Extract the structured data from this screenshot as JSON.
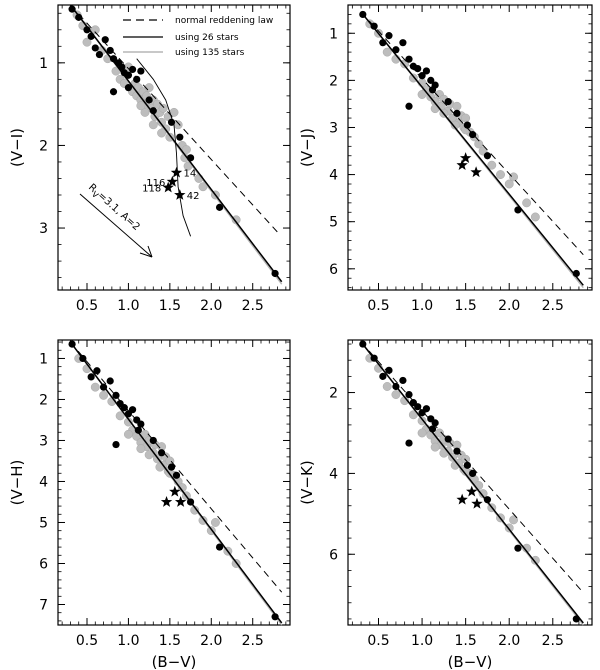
{
  "chart_data": [
    {
      "type": "scatter",
      "panel": "V-I",
      "xlabel": "",
      "ylabel": "(V−I)",
      "xlim": [
        0.15,
        2.95
      ],
      "ylim": [
        0.3,
        3.75
      ],
      "y_inverted": true,
      "x_ticks": [
        0.5,
        1.0,
        1.5,
        2.0,
        2.5
      ],
      "x_tick_labels": [
        "0.5",
        "1.0",
        "1.5",
        "2.0",
        "2.5"
      ],
      "y_ticks": [
        1,
        2,
        3
      ],
      "y_tick_labels": [
        "1",
        "2",
        "3"
      ],
      "legend": [
        {
          "label": "normal reddening law",
          "style": "dashed"
        },
        {
          "label": "using 26 stars",
          "style": "solid-black"
        },
        {
          "label": "using 135 stars",
          "style": "solid-gray"
        }
      ],
      "lines": {
        "normal_reddening": [
          [
            0.3,
            0.3
          ],
          [
            2.8,
            3.05
          ]
        ],
        "fit_26": [
          [
            0.3,
            0.3
          ],
          [
            2.85,
            3.65
          ]
        ],
        "fit_135": [
          [
            0.3,
            0.3
          ],
          [
            2.85,
            3.68
          ]
        ]
      },
      "isochrone": [
        [
          1.1,
          0.95
        ],
        [
          1.3,
          1.2
        ],
        [
          1.45,
          1.45
        ],
        [
          1.55,
          1.75
        ],
        [
          1.58,
          2.1
        ],
        [
          1.6,
          2.5
        ],
        [
          1.66,
          2.85
        ],
        [
          1.75,
          3.1
        ]
      ],
      "black_points": [
        [
          0.32,
          0.35
        ],
        [
          0.4,
          0.45
        ],
        [
          0.5,
          0.6
        ],
        [
          0.55,
          0.68
        ],
        [
          0.6,
          0.82
        ],
        [
          0.65,
          0.9
        ],
        [
          0.72,
          0.72
        ],
        [
          0.78,
          0.85
        ],
        [
          0.82,
          0.95
        ],
        [
          0.88,
          1.0
        ],
        [
          0.92,
          1.05
        ],
        [
          0.95,
          1.12
        ],
        [
          1.0,
          1.15
        ],
        [
          1.05,
          1.08
        ],
        [
          1.1,
          1.2
        ],
        [
          1.15,
          1.1
        ],
        [
          1.0,
          1.3
        ],
        [
          0.82,
          1.35
        ],
        [
          1.25,
          1.45
        ],
        [
          1.3,
          1.58
        ],
        [
          1.52,
          1.72
        ],
        [
          1.62,
          1.9
        ],
        [
          1.75,
          2.15
        ],
        [
          2.1,
          2.75
        ],
        [
          2.77,
          3.55
        ]
      ],
      "gray_points": [
        [
          0.38,
          0.42
        ],
        [
          0.45,
          0.55
        ],
        [
          0.5,
          0.75
        ],
        [
          0.6,
          0.6
        ],
        [
          0.68,
          0.85
        ],
        [
          0.75,
          0.95
        ],
        [
          0.85,
          1.1
        ],
        [
          0.9,
          1.2
        ],
        [
          0.95,
          1.25
        ],
        [
          1.0,
          1.05
        ],
        [
          1.05,
          1.35
        ],
        [
          1.08,
          1.25
        ],
        [
          1.1,
          1.4
        ],
        [
          1.12,
          1.3
        ],
        [
          1.15,
          1.45
        ],
        [
          1.18,
          1.35
        ],
        [
          1.2,
          1.5
        ],
        [
          1.22,
          1.4
        ],
        [
          1.25,
          1.3
        ],
        [
          1.28,
          1.55
        ],
        [
          1.3,
          1.45
        ],
        [
          1.32,
          1.65
        ],
        [
          1.35,
          1.5
        ],
        [
          1.38,
          1.6
        ],
        [
          1.4,
          1.72
        ],
        [
          1.42,
          1.55
        ],
        [
          1.45,
          1.8
        ],
        [
          1.48,
          1.65
        ],
        [
          1.5,
          1.9
        ],
        [
          1.55,
          1.6
        ],
        [
          1.6,
          1.75
        ],
        [
          1.65,
          2.0
        ],
        [
          1.68,
          2.15
        ],
        [
          1.72,
          2.25
        ],
        [
          1.85,
          2.4
        ],
        [
          1.9,
          2.5
        ],
        [
          2.05,
          2.6
        ],
        [
          2.3,
          2.9
        ],
        [
          1.2,
          1.6
        ],
        [
          1.15,
          1.52
        ],
        [
          1.3,
          1.75
        ],
        [
          1.4,
          1.85
        ],
        [
          1.7,
          2.05
        ]
      ],
      "stars": [
        [
          1.58,
          2.33
        ],
        [
          1.53,
          2.44
        ],
        [
          1.48,
          2.51
        ],
        [
          1.62,
          2.6
        ]
      ],
      "star_labels": [
        "14",
        "116",
        "118",
        "42"
      ],
      "annotation": {
        "text": "R_V=3.1, A=2",
        "rv_main": "R",
        "rv_sub": "V",
        "rv_rest": "=3.1, A=2"
      }
    },
    {
      "type": "scatter",
      "panel": "V-J",
      "xlabel": "",
      "ylabel": "(V−J)",
      "xlim": [
        0.15,
        2.95
      ],
      "ylim": [
        0.4,
        6.45
      ],
      "y_inverted": true,
      "x_ticks": [
        0.5,
        1.0,
        1.5,
        2.0,
        2.5
      ],
      "x_tick_labels": [
        "0.5",
        "1.0",
        "1.5",
        "2.0",
        "2.5"
      ],
      "y_ticks": [
        1,
        2,
        3,
        4,
        5,
        6
      ],
      "y_tick_labels": [
        "1",
        "2",
        "3",
        "4",
        "5",
        "6"
      ],
      "lines": {
        "normal_reddening": [
          [
            0.3,
            0.55
          ],
          [
            2.85,
            5.7
          ]
        ],
        "fit_26": [
          [
            0.3,
            0.55
          ],
          [
            2.85,
            6.35
          ]
        ],
        "fit_135": [
          [
            0.3,
            0.55
          ],
          [
            2.85,
            6.4
          ]
        ]
      },
      "black_points": [
        [
          0.32,
          0.6
        ],
        [
          0.45,
          0.85
        ],
        [
          0.55,
          1.2
        ],
        [
          0.62,
          1.05
        ],
        [
          0.7,
          1.35
        ],
        [
          0.78,
          1.2
        ],
        [
          0.85,
          1.55
        ],
        [
          0.9,
          1.7
        ],
        [
          0.95,
          1.75
        ],
        [
          1.0,
          1.9
        ],
        [
          1.05,
          1.8
        ],
        [
          1.1,
          2.0
        ],
        [
          1.12,
          2.2
        ],
        [
          1.15,
          2.1
        ],
        [
          0.85,
          2.55
        ],
        [
          1.3,
          2.45
        ],
        [
          1.4,
          2.7
        ],
        [
          1.52,
          2.95
        ],
        [
          1.58,
          3.15
        ],
        [
          1.75,
          3.6
        ],
        [
          2.1,
          4.75
        ],
        [
          2.77,
          6.1
        ]
      ],
      "gray_points": [
        [
          0.4,
          0.8
        ],
        [
          0.5,
          1.0
        ],
        [
          0.6,
          1.4
        ],
        [
          0.7,
          1.55
        ],
        [
          0.8,
          1.65
        ],
        [
          0.9,
          1.95
        ],
        [
          1.0,
          2.05
        ],
        [
          1.05,
          2.2
        ],
        [
          1.1,
          2.35
        ],
        [
          1.15,
          2.45
        ],
        [
          1.2,
          2.3
        ],
        [
          1.22,
          2.55
        ],
        [
          1.25,
          2.4
        ],
        [
          1.3,
          2.65
        ],
        [
          1.32,
          2.5
        ],
        [
          1.35,
          2.8
        ],
        [
          1.4,
          2.55
        ],
        [
          1.42,
          2.9
        ],
        [
          1.45,
          2.75
        ],
        [
          1.48,
          3.0
        ],
        [
          1.5,
          2.8
        ],
        [
          1.55,
          3.1
        ],
        [
          1.6,
          3.2
        ],
        [
          1.65,
          3.35
        ],
        [
          1.7,
          3.5
        ],
        [
          1.8,
          3.8
        ],
        [
          1.9,
          4.0
        ],
        [
          2.0,
          4.2
        ],
        [
          2.05,
          4.05
        ],
        [
          2.2,
          4.6
        ],
        [
          2.3,
          4.9
        ],
        [
          1.25,
          2.7
        ],
        [
          1.38,
          2.95
        ],
        [
          1.5,
          3.05
        ],
        [
          1.15,
          2.6
        ],
        [
          1.0,
          2.3
        ]
      ],
      "stars": [
        [
          1.5,
          3.65
        ],
        [
          1.46,
          3.8
        ],
        [
          1.62,
          3.95
        ]
      ]
    },
    {
      "type": "scatter",
      "panel": "V-H",
      "xlabel": "(B−V)",
      "ylabel": "(V−H)",
      "xlim": [
        0.15,
        2.95
      ],
      "ylim": [
        0.55,
        7.5
      ],
      "y_inverted": true,
      "x_ticks": [
        0.5,
        1.0,
        1.5,
        2.0,
        2.5
      ],
      "x_tick_labels": [
        "0.5",
        "1.0",
        "1.5",
        "2.0",
        "2.5"
      ],
      "y_ticks": [
        1,
        2,
        3,
        4,
        5,
        6,
        7
      ],
      "y_tick_labels": [
        "1",
        "2",
        "3",
        "4",
        "5",
        "6",
        "7"
      ],
      "lines": {
        "normal_reddening": [
          [
            0.3,
            0.6
          ],
          [
            2.85,
            6.7
          ]
        ],
        "fit_26": [
          [
            0.3,
            0.6
          ],
          [
            2.85,
            7.45
          ]
        ],
        "fit_135": [
          [
            0.3,
            0.6
          ],
          [
            2.85,
            7.5
          ]
        ]
      },
      "black_points": [
        [
          0.32,
          0.65
        ],
        [
          0.45,
          1.0
        ],
        [
          0.55,
          1.45
        ],
        [
          0.62,
          1.3
        ],
        [
          0.7,
          1.7
        ],
        [
          0.78,
          1.55
        ],
        [
          0.85,
          1.9
        ],
        [
          0.9,
          2.1
        ],
        [
          0.95,
          2.2
        ],
        [
          1.0,
          2.35
        ],
        [
          1.05,
          2.25
        ],
        [
          1.1,
          2.5
        ],
        [
          1.12,
          2.75
        ],
        [
          1.15,
          2.6
        ],
        [
          0.85,
          3.1
        ],
        [
          1.3,
          3.0
        ],
        [
          1.4,
          3.3
        ],
        [
          1.52,
          3.65
        ],
        [
          1.58,
          3.85
        ],
        [
          1.75,
          4.5
        ],
        [
          2.1,
          5.6
        ],
        [
          2.77,
          7.3
        ]
      ],
      "gray_points": [
        [
          0.4,
          1.0
        ],
        [
          0.5,
          1.25
        ],
        [
          0.6,
          1.7
        ],
        [
          0.7,
          1.9
        ],
        [
          0.8,
          2.05
        ],
        [
          0.9,
          2.4
        ],
        [
          1.0,
          2.55
        ],
        [
          1.05,
          2.75
        ],
        [
          1.1,
          2.9
        ],
        [
          1.15,
          3.05
        ],
        [
          1.2,
          2.85
        ],
        [
          1.22,
          3.15
        ],
        [
          1.25,
          3.0
        ],
        [
          1.3,
          3.3
        ],
        [
          1.32,
          3.1
        ],
        [
          1.35,
          3.45
        ],
        [
          1.4,
          3.15
        ],
        [
          1.42,
          3.6
        ],
        [
          1.45,
          3.4
        ],
        [
          1.48,
          3.75
        ],
        [
          1.5,
          3.5
        ],
        [
          1.55,
          3.85
        ],
        [
          1.6,
          4.0
        ],
        [
          1.65,
          4.15
        ],
        [
          1.7,
          4.35
        ],
        [
          1.8,
          4.7
        ],
        [
          1.9,
          4.95
        ],
        [
          2.0,
          5.2
        ],
        [
          2.05,
          5.0
        ],
        [
          2.2,
          5.7
        ],
        [
          2.3,
          6.0
        ],
        [
          1.25,
          3.35
        ],
        [
          1.38,
          3.65
        ],
        [
          1.5,
          3.8
        ],
        [
          1.15,
          3.2
        ],
        [
          1.0,
          2.85
        ]
      ],
      "stars": [
        [
          1.56,
          4.25
        ],
        [
          1.46,
          4.5
        ],
        [
          1.63,
          4.5
        ]
      ]
    },
    {
      "type": "scatter",
      "panel": "V-K",
      "xlabel": "(B−V)",
      "ylabel": "(V−K)",
      "xlim": [
        0.15,
        2.95
      ],
      "ylim": [
        0.7,
        7.75
      ],
      "y_inverted": true,
      "x_ticks": [
        0.5,
        1.0,
        1.5,
        2.0,
        2.5
      ],
      "x_tick_labels": [
        "0.5",
        "1.0",
        "1.5",
        "2.0",
        "2.5"
      ],
      "y_ticks": [
        2,
        4,
        6
      ],
      "y_tick_labels": [
        "2",
        "4",
        "6"
      ],
      "lines": {
        "normal_reddening": [
          [
            0.3,
            0.75
          ],
          [
            2.85,
            6.95
          ]
        ],
        "fit_26": [
          [
            0.3,
            0.75
          ],
          [
            2.85,
            7.7
          ]
        ],
        "fit_135": [
          [
            0.3,
            0.75
          ],
          [
            2.85,
            7.75
          ]
        ]
      },
      "black_points": [
        [
          0.32,
          0.8
        ],
        [
          0.45,
          1.15
        ],
        [
          0.55,
          1.6
        ],
        [
          0.62,
          1.45
        ],
        [
          0.7,
          1.85
        ],
        [
          0.78,
          1.7
        ],
        [
          0.85,
          2.05
        ],
        [
          0.9,
          2.25
        ],
        [
          0.95,
          2.35
        ],
        [
          1.0,
          2.5
        ],
        [
          1.05,
          2.4
        ],
        [
          1.1,
          2.65
        ],
        [
          1.12,
          2.9
        ],
        [
          1.15,
          2.75
        ],
        [
          0.85,
          3.25
        ],
        [
          1.3,
          3.15
        ],
        [
          1.4,
          3.45
        ],
        [
          1.52,
          3.8
        ],
        [
          1.58,
          4.0
        ],
        [
          1.75,
          4.65
        ],
        [
          2.1,
          5.85
        ],
        [
          2.77,
          7.6
        ]
      ],
      "gray_points": [
        [
          0.4,
          1.15
        ],
        [
          0.5,
          1.4
        ],
        [
          0.6,
          1.85
        ],
        [
          0.7,
          2.05
        ],
        [
          0.8,
          2.2
        ],
        [
          0.9,
          2.55
        ],
        [
          1.0,
          2.7
        ],
        [
          1.05,
          2.9
        ],
        [
          1.1,
          3.05
        ],
        [
          1.15,
          3.2
        ],
        [
          1.2,
          3.0
        ],
        [
          1.22,
          3.3
        ],
        [
          1.25,
          3.15
        ],
        [
          1.3,
          3.45
        ],
        [
          1.32,
          3.25
        ],
        [
          1.35,
          3.6
        ],
        [
          1.4,
          3.3
        ],
        [
          1.42,
          3.75
        ],
        [
          1.45,
          3.55
        ],
        [
          1.48,
          3.9
        ],
        [
          1.5,
          3.65
        ],
        [
          1.55,
          4.0
        ],
        [
          1.6,
          4.15
        ],
        [
          1.65,
          4.3
        ],
        [
          1.7,
          4.5
        ],
        [
          1.8,
          4.85
        ],
        [
          1.9,
          5.1
        ],
        [
          2.0,
          5.35
        ],
        [
          2.05,
          5.15
        ],
        [
          2.2,
          5.85
        ],
        [
          2.3,
          6.15
        ],
        [
          1.25,
          3.5
        ],
        [
          1.38,
          3.8
        ],
        [
          1.5,
          3.95
        ],
        [
          1.15,
          3.35
        ],
        [
          1.0,
          3.0
        ]
      ],
      "stars": [
        [
          1.57,
          4.45
        ],
        [
          1.46,
          4.65
        ],
        [
          1.63,
          4.75
        ]
      ]
    }
  ]
}
